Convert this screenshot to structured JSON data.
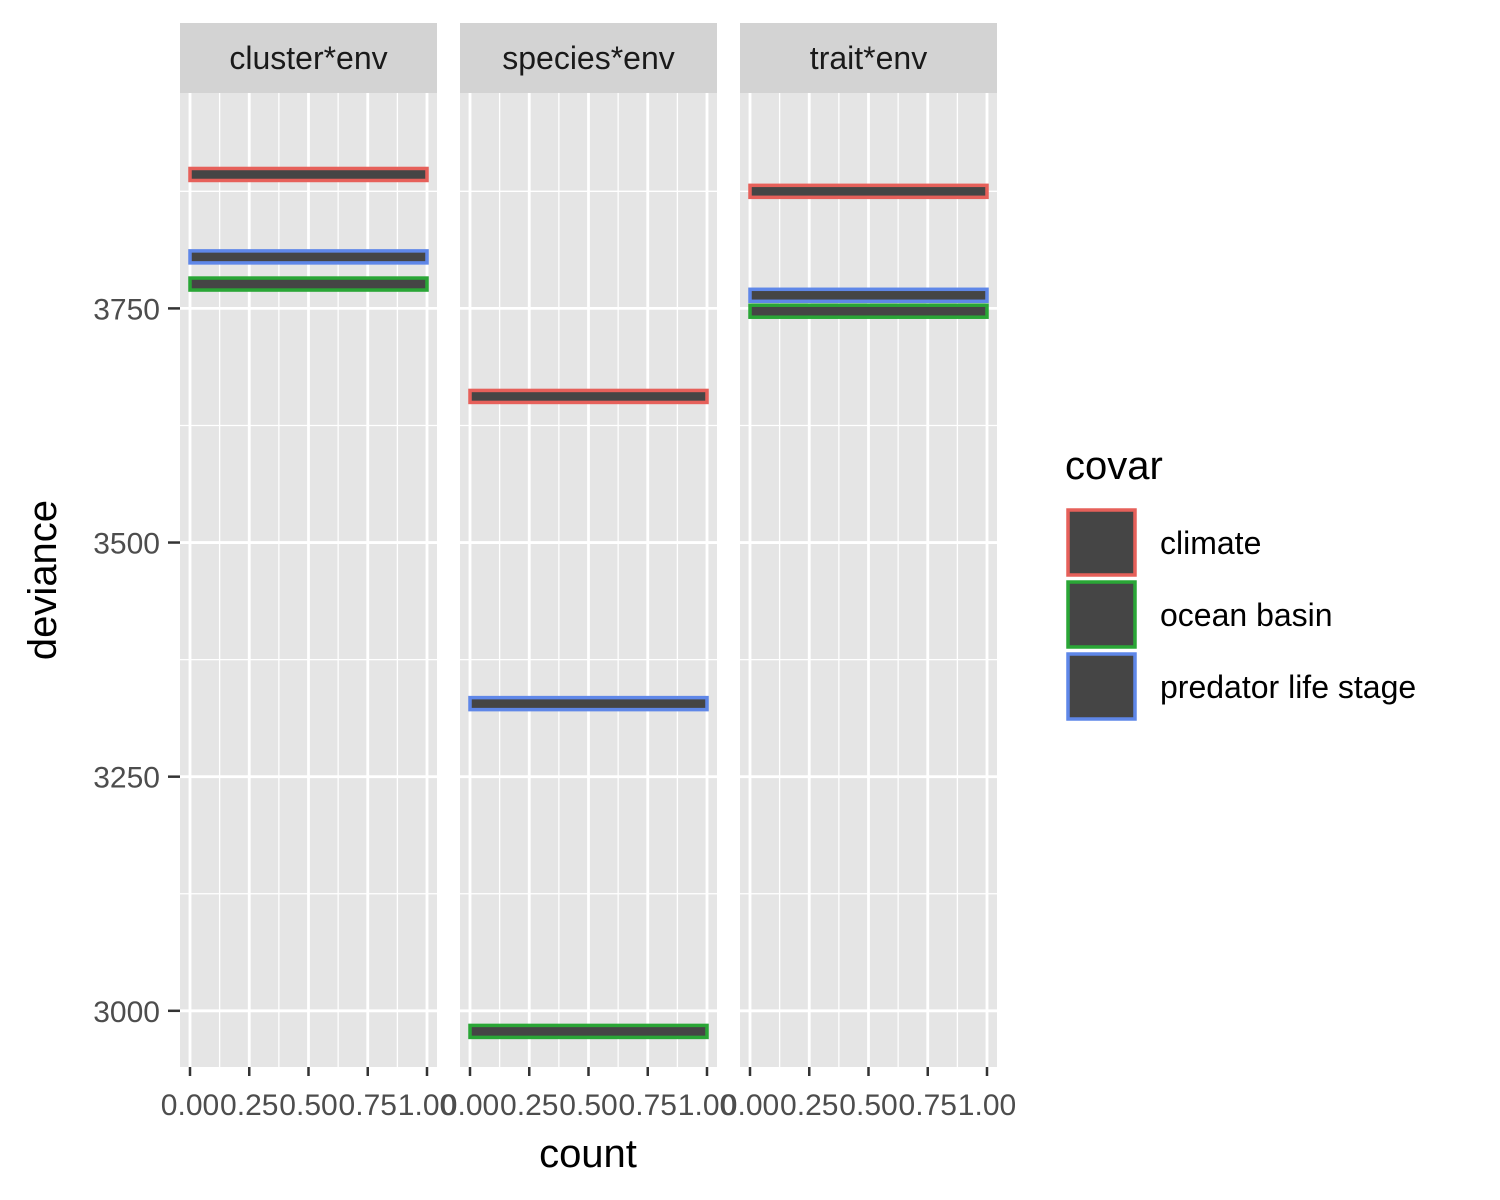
{
  "chart_data": {
    "type": "bar",
    "orientation": "horizontal",
    "xlabel": "count",
    "ylabel": "deviance",
    "xlim": [
      0,
      1
    ],
    "ylim": [
      2940,
      3980
    ],
    "x_ticks": [
      "0.00",
      "0.25",
      "0.50",
      "0.75",
      "1.00"
    ],
    "x_tick_values": [
      0,
      0.25,
      0.5,
      0.75,
      1
    ],
    "y_ticks": [
      "3000",
      "3250",
      "3500",
      "3750"
    ],
    "y_tick_values": [
      3000,
      3250,
      3500,
      3750
    ],
    "grid": true,
    "legend": {
      "title": "covar",
      "position": "right",
      "entries": [
        {
          "label": "climate",
          "color": "#E6605A"
        },
        {
          "label": "ocean basin",
          "color": "#2AA636"
        },
        {
          "label": "predator life stage",
          "color": "#5F87E8"
        }
      ]
    },
    "panels": [
      {
        "label": "cluster*env",
        "bars": [
          {
            "covar": "climate",
            "deviance": 3893,
            "count": 1
          },
          {
            "covar": "predator life stage",
            "deviance": 3805,
            "count": 1
          },
          {
            "covar": "ocean basin",
            "deviance": 3776,
            "count": 1
          }
        ]
      },
      {
        "label": "species*env",
        "bars": [
          {
            "covar": "climate",
            "deviance": 3656,
            "count": 1
          },
          {
            "covar": "predator life stage",
            "deviance": 3328,
            "count": 1
          },
          {
            "covar": "ocean basin",
            "deviance": 2978,
            "count": 1
          }
        ]
      },
      {
        "label": "trait*env",
        "bars": [
          {
            "covar": "climate",
            "deviance": 3875,
            "count": 1
          },
          {
            "covar": "predator life stage",
            "deviance": 3764,
            "count": 1
          },
          {
            "covar": "ocean basin",
            "deviance": 3747,
            "count": 1
          }
        ]
      }
    ],
    "colors": {
      "panel_background": "#E5E5E5",
      "strip_background": "#D3D3D3",
      "grid": "#FFFFFF",
      "bar_fill": "#454545"
    }
  }
}
